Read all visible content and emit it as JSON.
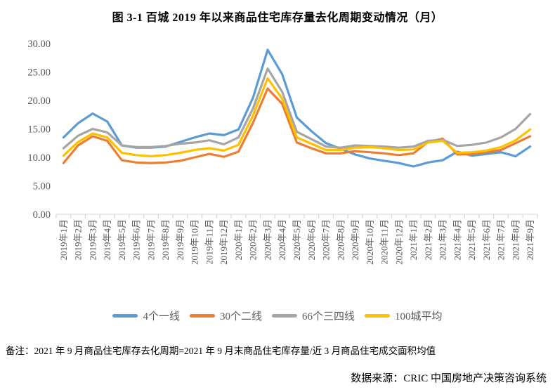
{
  "title": "图 3-1 百城 2019 年以来商品住宅库存量去化周期变动情况（月）",
  "note": "备注：2021 年 9 月商品住宅库存去化周期=2021 年 9 月末商品住宅库存量/近 3 月商品住宅成交面积均值",
  "source": "数据来源：CRIC 中国房地产决策咨询系统",
  "colors": {
    "tier1_blue": "#5B9BD5",
    "tier2_orange": "#ED7D31",
    "tier34_gray": "#A5A5A5",
    "avg_yellow": "#FFC000",
    "axis": "#D9D9D9",
    "tick_label": "#595959"
  },
  "chart_data": {
    "type": "line",
    "title": "图 3-1 百城 2019 年以来商品住宅库存量去化周期变动情况（月）",
    "xlabel": "",
    "ylabel": "",
    "ylim": [
      0,
      30
    ],
    "ytick_step": 5,
    "ytick_labels": [
      "0.00",
      "5.00",
      "10.00",
      "15.00",
      "20.00",
      "25.00",
      "30.00"
    ],
    "grid": false,
    "legend_position": "bottom",
    "x": [
      "2019年1月",
      "2019年2月",
      "2019年3月",
      "2019年4月",
      "2019年5月",
      "2019年6月",
      "2019年7月",
      "2019年8月",
      "2019年9月",
      "2019年10月",
      "2019年11月",
      "2019年12月",
      "2020年1月",
      "2020年2月",
      "2020年3月",
      "2020年4月",
      "2020年5月",
      "2020年6月",
      "2020年7月",
      "2020年8月",
      "2020年9月",
      "2020年10月",
      "2020年11月",
      "2020年12月",
      "2021年1月",
      "2021年2月",
      "2021年3月",
      "2021年4月",
      "2021年5月",
      "2021年6月",
      "2021年7月",
      "2021年8月",
      "2021年9月"
    ],
    "series": [
      {
        "name": "4个一线",
        "color": "#5B9BD5",
        "values": [
          13.5,
          16.0,
          17.7,
          16.3,
          12.1,
          11.7,
          11.7,
          11.9,
          12.7,
          13.5,
          14.2,
          13.9,
          14.9,
          20.5,
          28.9,
          24.6,
          17.0,
          14.6,
          12.5,
          11.5,
          10.5,
          9.8,
          9.4,
          9.0,
          8.4,
          9.1,
          9.5,
          11.0,
          10.3,
          10.6,
          10.9,
          10.2,
          11.9
        ]
      },
      {
        "name": "30个二线",
        "color": "#ED7D31",
        "values": [
          9.0,
          12.1,
          13.7,
          12.9,
          9.5,
          9.1,
          9.0,
          9.1,
          9.4,
          10.0,
          10.6,
          10.1,
          11.0,
          16.1,
          22.1,
          19.4,
          12.6,
          11.6,
          10.7,
          10.7,
          11.1,
          10.9,
          10.7,
          10.4,
          10.7,
          12.7,
          13.3,
          10.5,
          10.6,
          10.9,
          11.3,
          12.5,
          13.7
        ]
      },
      {
        "name": "66个三四线",
        "color": "#A5A5A5",
        "values": [
          11.6,
          13.8,
          15.0,
          14.4,
          12.1,
          11.8,
          11.8,
          12.0,
          12.4,
          12.6,
          13.0,
          12.3,
          13.5,
          18.6,
          25.6,
          21.5,
          14.5,
          13.2,
          11.9,
          11.7,
          12.1,
          12.0,
          11.9,
          11.7,
          11.9,
          12.9,
          13.1,
          12.0,
          12.2,
          12.6,
          13.5,
          15.0,
          17.6
        ]
      },
      {
        "name": "100城平均",
        "color": "#FFC000",
        "values": [
          10.3,
          12.7,
          14.2,
          13.5,
          10.8,
          10.4,
          10.2,
          10.4,
          10.8,
          11.3,
          11.6,
          11.2,
          12.2,
          17.4,
          23.9,
          20.3,
          13.5,
          12.4,
          11.3,
          11.3,
          11.7,
          11.8,
          11.6,
          11.3,
          11.4,
          12.6,
          12.9,
          10.8,
          10.9,
          11.2,
          11.8,
          13.0,
          14.9
        ]
      }
    ]
  }
}
